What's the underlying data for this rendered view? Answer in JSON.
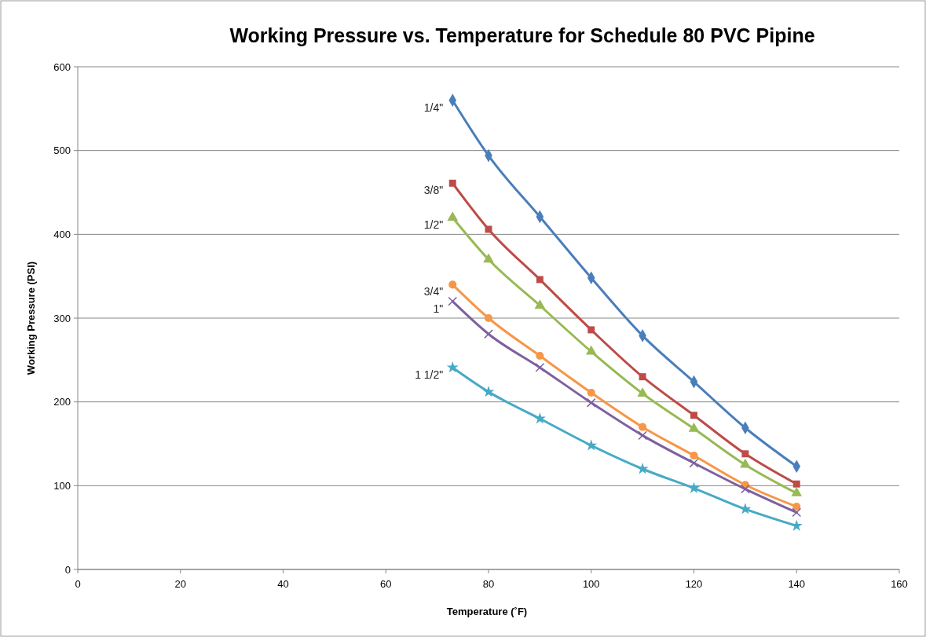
{
  "chart_data": {
    "type": "line",
    "title": "Working Pressure vs. Temperature for Schedule 80 PVC Pipine",
    "xlabel": "Temperature (˚F)",
    "ylabel": "Working Pressure (PSI)",
    "x": [
      73,
      80,
      90,
      100,
      110,
      120,
      130,
      140
    ],
    "xlim": [
      0,
      160
    ],
    "xticks": [
      0,
      20,
      40,
      60,
      80,
      100,
      120,
      140,
      160
    ],
    "ylim": [
      0,
      600
    ],
    "yticks": [
      0,
      100,
      200,
      300,
      400,
      500,
      600
    ],
    "grid": "y",
    "line_style": "solid",
    "series": [
      {
        "name": "1/4\"",
        "color": "#4a7ebb",
        "marker": "diamond",
        "values": [
          560,
          494,
          421,
          348,
          279,
          224,
          169,
          123
        ]
      },
      {
        "name": "3/8\"",
        "color": "#be4b48",
        "marker": "square",
        "values": [
          461,
          406,
          346,
          286,
          230,
          184,
          138,
          102
        ]
      },
      {
        "name": "1/2\"",
        "color": "#98b954",
        "marker": "triangle",
        "values": [
          420,
          370,
          315,
          260,
          210,
          168,
          125,
          91
        ]
      },
      {
        "name": "3/4\"",
        "color": "#f79646",
        "marker": "circle",
        "values": [
          340,
          300,
          255,
          211,
          170,
          136,
          101,
          75
        ]
      },
      {
        "name": "1\"",
        "color": "#7d60a0",
        "marker": "cross",
        "values": [
          320,
          281,
          241,
          199,
          160,
          127,
          96,
          68
        ]
      },
      {
        "name": "1 1/2\"",
        "color": "#46aac5",
        "marker": "star",
        "values": [
          241,
          212,
          180,
          148,
          120,
          97,
          72,
          52
        ]
      }
    ]
  }
}
